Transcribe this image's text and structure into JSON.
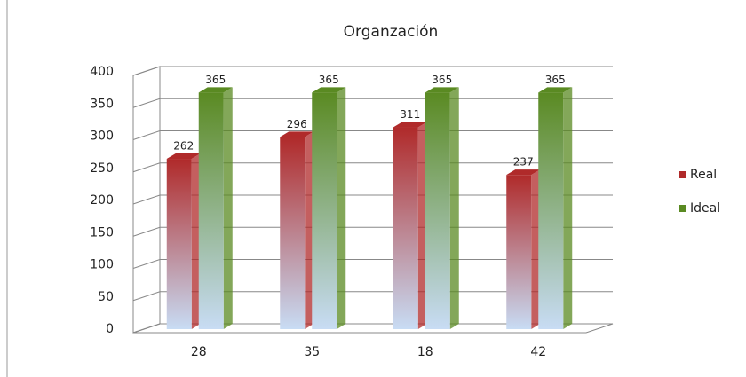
{
  "chart_data": {
    "type": "bar3d",
    "title": "Organzación",
    "categories": [
      "28",
      "35",
      "18",
      "42"
    ],
    "series": [
      {
        "name": "Real",
        "color": "#b02a2a",
        "values": [
          262,
          296,
          311,
          237
        ]
      },
      {
        "name": "Ideal",
        "color": "#5a8a22",
        "values": [
          365,
          365,
          365,
          365
        ]
      }
    ],
    "ylim": [
      0,
      400
    ],
    "yticks": [
      0,
      50,
      100,
      150,
      200,
      250,
      300,
      350,
      400
    ],
    "grid": true,
    "legend": "right"
  }
}
